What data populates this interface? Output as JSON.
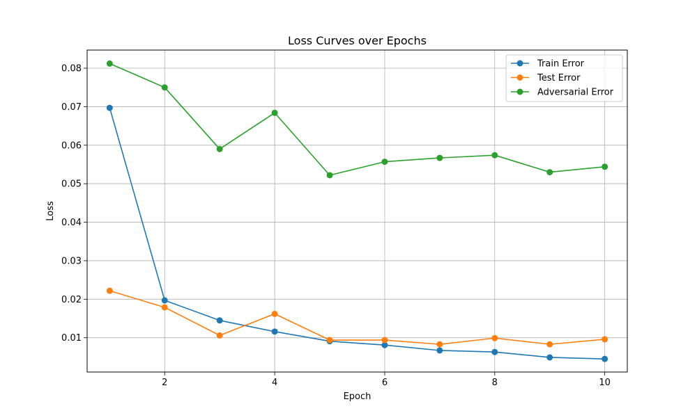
{
  "chart_data": {
    "type": "line",
    "title": "Loss Curves over Epochs",
    "xlabel": "Epoch",
    "ylabel": "Loss",
    "x": [
      1,
      2,
      3,
      4,
      5,
      6,
      7,
      8,
      9,
      10
    ],
    "xlim": [
      0.59,
      10.41
    ],
    "ylim": [
      0.0011,
      0.0847
    ],
    "xticks": [
      2,
      4,
      6,
      8,
      10
    ],
    "yticks": [
      0.01,
      0.02,
      0.03,
      0.04,
      0.05,
      0.06,
      0.07,
      0.08
    ],
    "ytick_labels": [
      "0.01",
      "0.02",
      "0.03",
      "0.04",
      "0.05",
      "0.06",
      "0.07",
      "0.08"
    ],
    "grid": true,
    "legend_position": "top-right",
    "series": [
      {
        "name": "Train Error",
        "color": "#1f77b4",
        "marker": "circle",
        "values": [
          0.0697,
          0.0197,
          0.0145,
          0.0116,
          0.0091,
          0.0081,
          0.0067,
          0.0063,
          0.0049,
          0.0045
        ]
      },
      {
        "name": "Test Error",
        "color": "#ff7f0e",
        "marker": "circle",
        "values": [
          0.0222,
          0.0179,
          0.0106,
          0.0162,
          0.0094,
          0.0094,
          0.0083,
          0.0099,
          0.0083,
          0.0096
        ]
      },
      {
        "name": "Adversarial Error",
        "color": "#2ca02c",
        "marker": "circle",
        "values": [
          0.0812,
          0.075,
          0.059,
          0.0684,
          0.0522,
          0.0557,
          0.0567,
          0.0574,
          0.053,
          0.0544
        ]
      }
    ]
  }
}
